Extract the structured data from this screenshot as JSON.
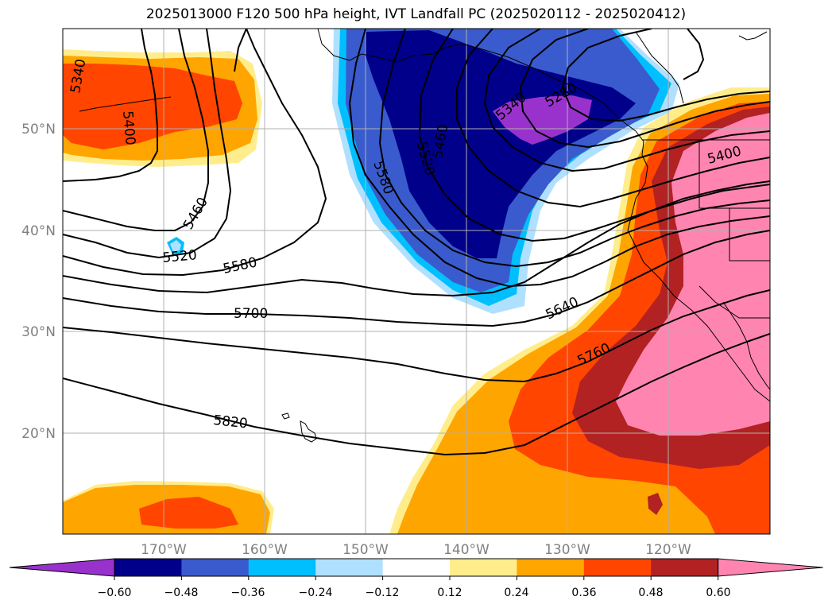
{
  "title": "2025013000 F120 500 hPa height, IVT Landfall PC (2025020112 - 2025020412)",
  "lat_labels": [
    "50°N",
    "40°N",
    "30°N",
    "20°N"
  ],
  "lon_labels": [
    "170°W",
    "160°W",
    "150°W",
    "140°W",
    "130°W",
    "120°W"
  ],
  "contour_labels": [
    "5340",
    "5400",
    "5460",
    "5520",
    "5580",
    "5700",
    "5820",
    "5520",
    "5460",
    "5580",
    "5340",
    "5280",
    "5640",
    "5760",
    "5400"
  ],
  "colorbar": {
    "colors": [
      "#9932CC",
      "#00008B",
      "#3A5BCD",
      "#00BFFF",
      "#B0E0FF",
      "#FFFFFF",
      "#FFED8C",
      "#FFA500",
      "#FF4500",
      "#B22222",
      "#FF85B0"
    ],
    "tick_labels": [
      "−0.60",
      "−0.48",
      "−0.36",
      "−0.24",
      "−0.12",
      "0.12",
      "0.24",
      "0.36",
      "0.48",
      "0.60"
    ]
  }
}
